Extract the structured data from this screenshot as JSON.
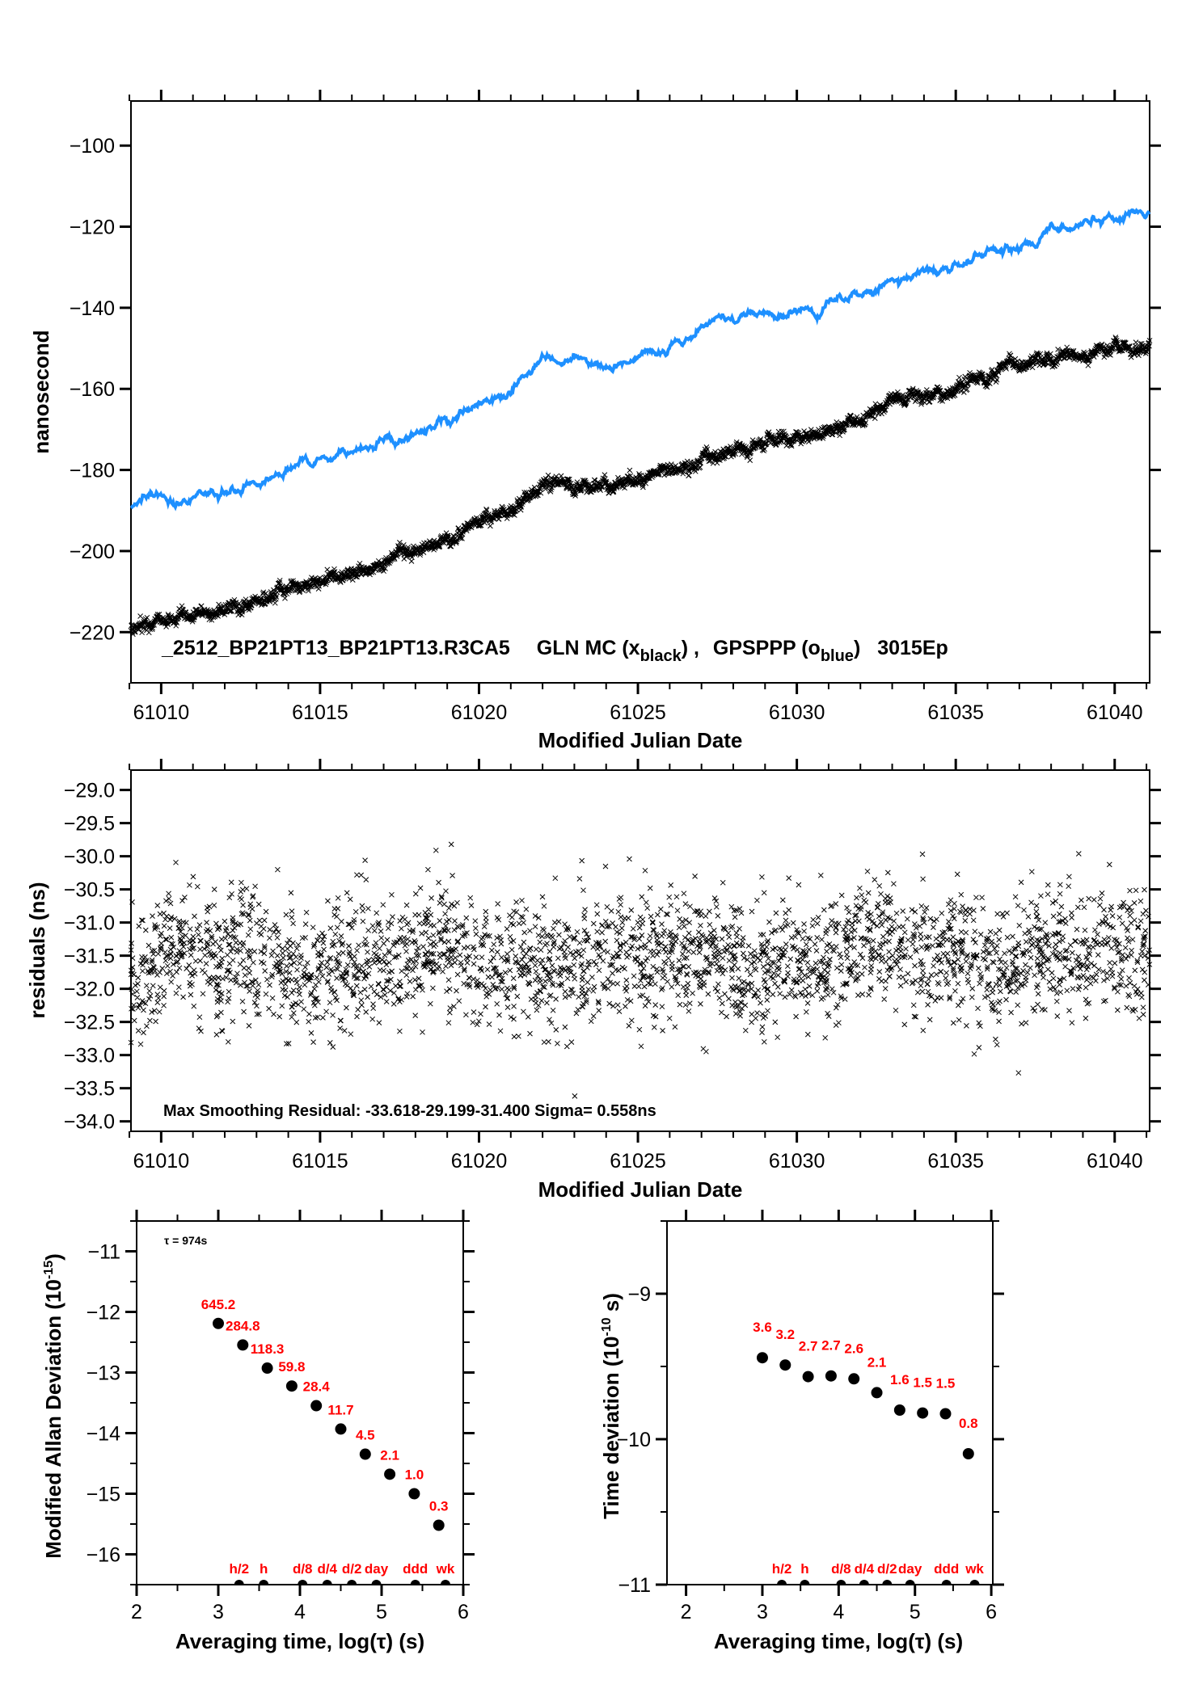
{
  "colors": {
    "blue_series": "#1e90ff",
    "black_series": "#000000",
    "annotation_red": "#ff0000"
  },
  "chart_data": [
    {
      "id": "phase",
      "type": "line",
      "title": "",
      "xlabel": "Modified Julian Date",
      "ylabel": "nanosecond",
      "xlim": [
        61009.05,
        61041.1
      ],
      "ylim": [
        -232.5,
        -89
      ],
      "xticks": [
        61010,
        61015,
        61020,
        61025,
        61030,
        61035,
        61040
      ],
      "xtick_labels": [
        "61010",
        "61015",
        "61020",
        "61025",
        "61030",
        "61035",
        "61040"
      ],
      "yticks": [
        -100,
        -120,
        -140,
        -160,
        -180,
        -200,
        -220
      ],
      "ytick_labels": [
        "−100",
        "−120",
        "−140",
        "−160",
        "−180",
        "−200",
        "−220"
      ],
      "caption": {
        "station": "_2512_BP21PT13_BP21PT13.R3CA5",
        "series1_name": "GLN MC (x",
        "series1_sub": "black",
        "sep": ") ,",
        "series2_name": "GPSPPP (o",
        "series2_sub": "blue",
        "series2_close": ")",
        "suffix": "3015Ep"
      },
      "series": [
        {
          "name": "GPSPPP (o blue)",
          "color": "#1e90ff",
          "marker": "line",
          "x": [
            61009.05,
            61010,
            61011,
            61012,
            61013,
            61014,
            61015,
            61016,
            61017,
            61018,
            61019,
            61020,
            61021,
            61022,
            61023,
            61024,
            61025,
            61026,
            61027,
            61028,
            61029,
            61030,
            61031,
            61032,
            61033,
            61034,
            61035,
            61036,
            61037,
            61038,
            61039,
            61040,
            61041.1
          ],
          "y": [
            -188,
            -186.5,
            -186,
            -185,
            -182,
            -180.5,
            -178,
            -175.5,
            -174.5,
            -171,
            -168.5,
            -164,
            -161,
            -154,
            -153,
            -154,
            -151.5,
            -150,
            -146.5,
            -143,
            -141.5,
            -141,
            -139,
            -136,
            -133,
            -131.5,
            -129.5,
            -127,
            -124.5,
            -119,
            -120,
            -119,
            -117
          ]
        },
        {
          "name": "GLN MC (x black)",
          "color": "#000000",
          "marker": "x",
          "x": [
            61009.05,
            61010,
            61011,
            61012,
            61013,
            61014,
            61015,
            61016,
            61017,
            61018,
            61019,
            61020,
            61021,
            61022,
            61023,
            61024,
            61025,
            61026,
            61027,
            61028,
            61029,
            61030,
            61031,
            61032,
            61033,
            61034,
            61035,
            61036,
            61037,
            61038,
            61039,
            61040,
            61041.1
          ],
          "y": [
            -219,
            -217.5,
            -216,
            -215,
            -212,
            -209.5,
            -207,
            -206,
            -203,
            -200,
            -197.5,
            -193,
            -190,
            -184,
            -184.5,
            -185,
            -182.5,
            -180,
            -177.5,
            -175,
            -173.5,
            -172.5,
            -170.5,
            -167,
            -163,
            -162,
            -159,
            -156.5,
            -154,
            -151.5,
            -152,
            -150,
            -149
          ]
        }
      ]
    },
    {
      "id": "residuals",
      "type": "scatter",
      "xlabel": "Modified Julian Date",
      "ylabel": "residuals (ns)",
      "xlim": [
        61009.05,
        61041.1
      ],
      "ylim": [
        -34.15,
        -28.7
      ],
      "xticks": [
        61010,
        61015,
        61020,
        61025,
        61030,
        61035,
        61040
      ],
      "xtick_labels": [
        "61010",
        "61015",
        "61020",
        "61025",
        "61030",
        "61035",
        "61040"
      ],
      "yticks": [
        -29.0,
        -29.5,
        -30.0,
        -30.5,
        -31.0,
        -31.5,
        -32.0,
        -32.5,
        -33.0,
        -33.5,
        -34.0
      ],
      "ytick_labels": [
        "−29.0",
        "−29.5",
        "−30.0",
        "−30.5",
        "−31.0",
        "−31.5",
        "−32.0",
        "−32.5",
        "−33.0",
        "−33.5",
        "−34.0"
      ],
      "annotation": "Max Smoothing Residual: -33.618-29.199-31.400  Sigma= 0.558ns",
      "summary": {
        "min": -33.618,
        "max": -29.199,
        "mean": -31.4,
        "sigma_ns": 0.558,
        "n_points_approx": 3000
      },
      "marker": "x",
      "color": "#000000"
    },
    {
      "id": "mdev",
      "type": "scatter",
      "xlabel": "Averaging time, log(τ) (s)",
      "ylabel": "Modified Allan Deviation (10",
      "ylabel_sup": "-15",
      "ylabel_close": ")",
      "xlim": [
        2,
        6
      ],
      "ylim": [
        -16.5,
        -10.5
      ],
      "xticks": [
        2,
        3,
        4,
        5,
        6
      ],
      "xtick_labels": [
        "2",
        "3",
        "4",
        "5",
        "6"
      ],
      "yticks": [
        -11,
        -12,
        -13,
        -14,
        -15,
        -16
      ],
      "ytick_labels": [
        "−11",
        "−12",
        "−13",
        "−14",
        "−15",
        "−16"
      ],
      "tau_note": "τ = 974s",
      "x": [
        3.0,
        3.3,
        3.6,
        3.9,
        4.2,
        4.5,
        4.8,
        5.1,
        5.4,
        5.7
      ],
      "y": [
        -12.19,
        -12.545,
        -12.927,
        -13.223,
        -13.547,
        -13.932,
        -14.347,
        -14.678,
        -15.0,
        -15.52
      ],
      "point_labels": [
        "645.2",
        "284.8",
        "118.3",
        "59.8",
        "28.4",
        "11.7",
        "4.5",
        "2.1",
        "1.0",
        "0.3"
      ],
      "markers": [
        {
          "label": "h/2",
          "x": 3.255
        },
        {
          "label": "h",
          "x": 3.556
        },
        {
          "label": "d/8",
          "x": 4.032
        },
        {
          "label": "d/4",
          "x": 4.334
        },
        {
          "label": "d/2",
          "x": 4.635
        },
        {
          "label": "day",
          "x": 4.936
        },
        {
          "label": "ddd",
          "x": 5.413
        },
        {
          "label": "wk",
          "x": 5.782
        }
      ]
    },
    {
      "id": "tdev",
      "type": "scatter",
      "xlabel": "Averaging time, log(τ) (s)",
      "ylabel": "Time deviation (10",
      "ylabel_sup": "-10",
      "ylabel_close": " s)",
      "xlim": [
        1.75,
        6.02
      ],
      "ylim": [
        -11,
        -8.5
      ],
      "xticks": [
        2,
        3,
        4,
        5,
        6
      ],
      "xtick_labels": [
        "2",
        "3",
        "4",
        "5",
        "6"
      ],
      "yticks": [
        -9,
        -10,
        -11
      ],
      "ytick_labels": [
        "−9",
        "−10",
        "−11"
      ],
      "x": [
        3.0,
        3.3,
        3.6,
        3.9,
        4.2,
        4.5,
        4.8,
        5.1,
        5.4,
        5.7
      ],
      "y": [
        -9.44,
        -9.49,
        -9.57,
        -9.565,
        -9.585,
        -9.68,
        -9.8,
        -9.82,
        -9.825,
        -10.1
      ],
      "point_labels": [
        "3.6",
        "3.2",
        "2.7",
        "2.7",
        "2.6",
        "2.1",
        "1.6",
        "1.5",
        "1.5",
        "0.8"
      ],
      "markers": [
        {
          "label": "h/2",
          "x": 3.255
        },
        {
          "label": "h",
          "x": 3.556
        },
        {
          "label": "d/8",
          "x": 4.032
        },
        {
          "label": "d/4",
          "x": 4.334
        },
        {
          "label": "d/2",
          "x": 4.635
        },
        {
          "label": "day",
          "x": 4.936
        },
        {
          "label": "ddd",
          "x": 5.413
        },
        {
          "label": "wk",
          "x": 5.782
        }
      ]
    }
  ]
}
